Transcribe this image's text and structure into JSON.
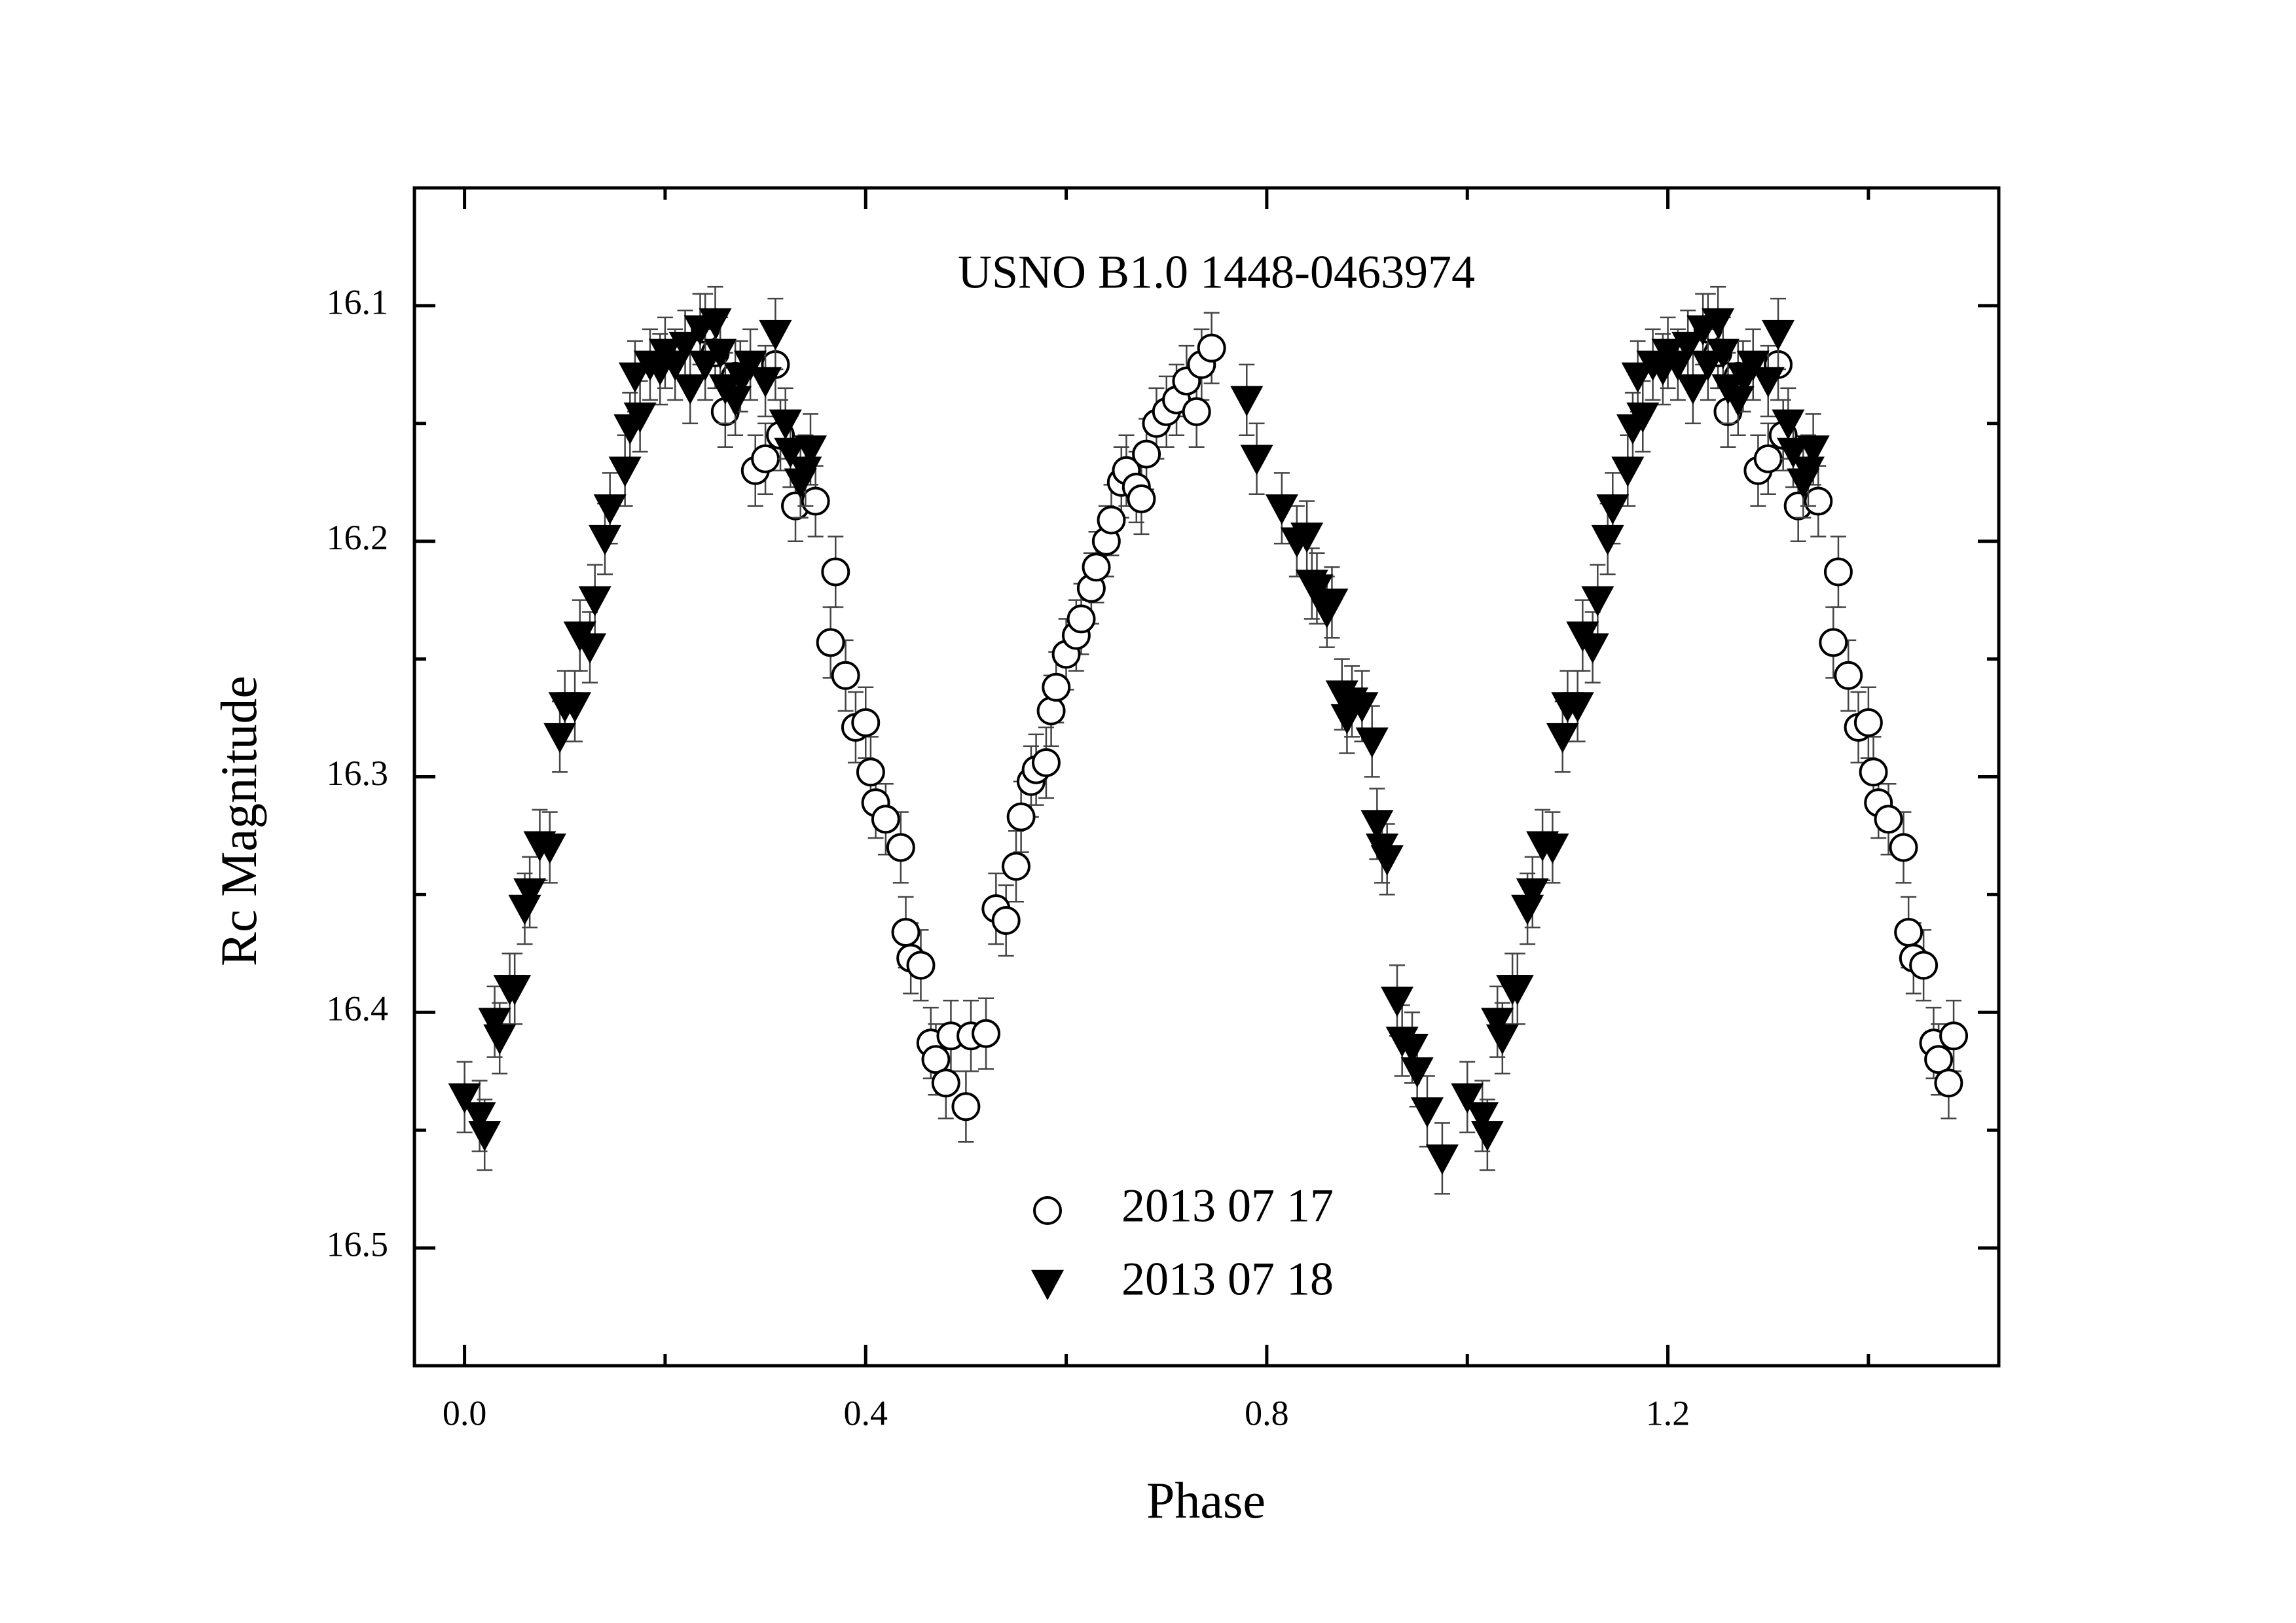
{
  "chart_data": {
    "type": "scatter",
    "title": "USNO B1.0 1448-0463974",
    "x_label": "Phase",
    "y_label": "Rc Magnitude",
    "xlim": [
      -0.05,
      1.53
    ],
    "ylim": [
      16.05,
      16.55
    ],
    "y_inverted": true,
    "xticks": [
      {
        "value": 0,
        "label": "0.0"
      },
      0.4,
      0.8,
      1.2
    ],
    "yticks": [
      16.1,
      16.2,
      16.3,
      16.4,
      16.5
    ],
    "legend": "bottom",
    "series": [
      {
        "name": "2013 07 17",
        "marker": "circle",
        "color": "#000000",
        "error": 0.015,
        "x": [
          0.24,
          0.25,
          0.26,
          0.27,
          0.29,
          0.3,
          0.31,
          0.315,
          0.33,
          0.35,
          0.37,
          0.365,
          0.38,
          0.39,
          0.4,
          0.405,
          0.41,
          0.42,
          0.435,
          0.44,
          0.445,
          0.455,
          0.465,
          0.47,
          0.48,
          0.485,
          0.5,
          0.505,
          0.52,
          0.53,
          0.54,
          0.55,
          0.555,
          0.565,
          0.57,
          0.58,
          0.585,
          0.59,
          0.6,
          0.61,
          0.615,
          0.625,
          0.63,
          0.64,
          0.645,
          0.655,
          0.66,
          0.67,
          0.675,
          0.68,
          0.69,
          0.7,
          0.71,
          0.72,
          0.73,
          0.735,
          0.745,
          1.24,
          1.25,
          1.26,
          1.27,
          1.29,
          1.3,
          1.31,
          1.315,
          1.33,
          1.35,
          1.37,
          1.365,
          1.38,
          1.39,
          1.4,
          1.405,
          1.41,
          1.42,
          1.435,
          1.44,
          1.445,
          1.455,
          1.465,
          1.47,
          1.48,
          1.485
        ],
        "y": [
          16.11,
          16.12,
          16.145,
          16.13,
          16.17,
          16.165,
          16.125,
          16.155,
          16.185,
          16.183,
          16.213,
          16.243,
          16.257,
          16.279,
          16.277,
          16.298,
          16.311,
          16.318,
          16.33,
          16.366,
          16.377,
          16.38,
          16.413,
          16.42,
          16.43,
          16.41,
          16.44,
          16.41,
          16.409,
          16.356,
          16.361,
          16.338,
          16.317,
          16.302,
          16.297,
          16.294,
          16.272,
          16.262,
          16.248,
          16.24,
          16.233,
          16.22,
          16.211,
          16.2,
          16.191,
          16.175,
          16.17,
          16.177,
          16.182,
          16.163,
          16.15,
          16.145,
          16.14,
          16.132,
          16.145,
          16.125,
          16.118,
          16.11,
          16.12,
          16.145,
          16.13,
          16.17,
          16.165,
          16.125,
          16.155,
          16.185,
          16.183,
          16.213,
          16.243,
          16.257,
          16.279,
          16.277,
          16.298,
          16.311,
          16.318,
          16.33,
          16.366,
          16.377,
          16.38,
          16.413,
          16.42,
          16.43,
          16.41
        ]
      },
      {
        "name": "2013 07 18",
        "marker": "triangle-down",
        "color": "#000000",
        "error": 0.015,
        "x": [
          0.0,
          0.015,
          0.02,
          0.03,
          0.035,
          0.045,
          0.05,
          0.06,
          0.065,
          0.075,
          0.085,
          0.095,
          0.1,
          0.11,
          0.115,
          0.125,
          0.13,
          0.14,
          0.145,
          0.16,
          0.165,
          0.17,
          0.175,
          0.185,
          0.195,
          0.2,
          0.21,
          0.22,
          0.225,
          0.235,
          0.24,
          0.25,
          0.255,
          0.26,
          0.27,
          0.275,
          0.285,
          0.3,
          0.31,
          0.32,
          0.325,
          0.335,
          0.34,
          0.345,
          0.78,
          0.79,
          0.815,
          0.83,
          0.84,
          0.845,
          0.85,
          0.86,
          0.865,
          0.875,
          0.88,
          0.885,
          0.895,
          0.905,
          0.91,
          0.915,
          0.92,
          0.93,
          0.935,
          0.945,
          0.95,
          0.96,
          0.975,
          1.0,
          1.015,
          1.02,
          1.03,
          1.035,
          1.045,
          1.05,
          1.06,
          1.065,
          1.075,
          1.085,
          1.095,
          1.1,
          1.11,
          1.115,
          1.125,
          1.13,
          1.14,
          1.145,
          1.16,
          1.165,
          1.17,
          1.175,
          1.185,
          1.195,
          1.2,
          1.21,
          1.22,
          1.225,
          1.235,
          1.24,
          1.25,
          1.255,
          1.26,
          1.27,
          1.275,
          1.285,
          1.3,
          1.31,
          1.32,
          1.325,
          1.335,
          1.34,
          1.345
        ],
        "y": [
          16.436,
          16.444,
          16.452,
          16.404,
          16.411,
          16.39,
          16.39,
          16.356,
          16.349,
          16.329,
          16.33,
          16.283,
          16.27,
          16.27,
          16.24,
          16.245,
          16.225,
          16.199,
          16.186,
          16.17,
          16.152,
          16.13,
          16.147,
          16.125,
          16.127,
          16.12,
          16.125,
          16.117,
          16.135,
          16.11,
          16.125,
          16.107,
          16.12,
          16.135,
          16.14,
          16.13,
          16.125,
          16.132,
          16.112,
          16.15,
          16.162,
          16.175,
          16.17,
          16.161,
          16.14,
          16.165,
          16.186,
          16.2,
          16.198,
          16.218,
          16.22,
          16.23,
          16.226,
          16.265,
          16.275,
          16.268,
          16.27,
          16.285,
          16.32,
          16.33,
          16.335,
          16.395,
          16.412,
          16.415,
          16.425,
          16.442,
          16.462,
          16.436,
          16.444,
          16.452,
          16.404,
          16.411,
          16.39,
          16.39,
          16.356,
          16.349,
          16.329,
          16.33,
          16.283,
          16.27,
          16.27,
          16.24,
          16.245,
          16.225,
          16.199,
          16.186,
          16.17,
          16.152,
          16.13,
          16.147,
          16.125,
          16.127,
          16.12,
          16.125,
          16.117,
          16.135,
          16.11,
          16.125,
          16.107,
          16.12,
          16.135,
          16.14,
          16.13,
          16.125,
          16.132,
          16.112,
          16.15,
          16.162,
          16.175,
          16.17,
          16.161
        ]
      }
    ]
  }
}
